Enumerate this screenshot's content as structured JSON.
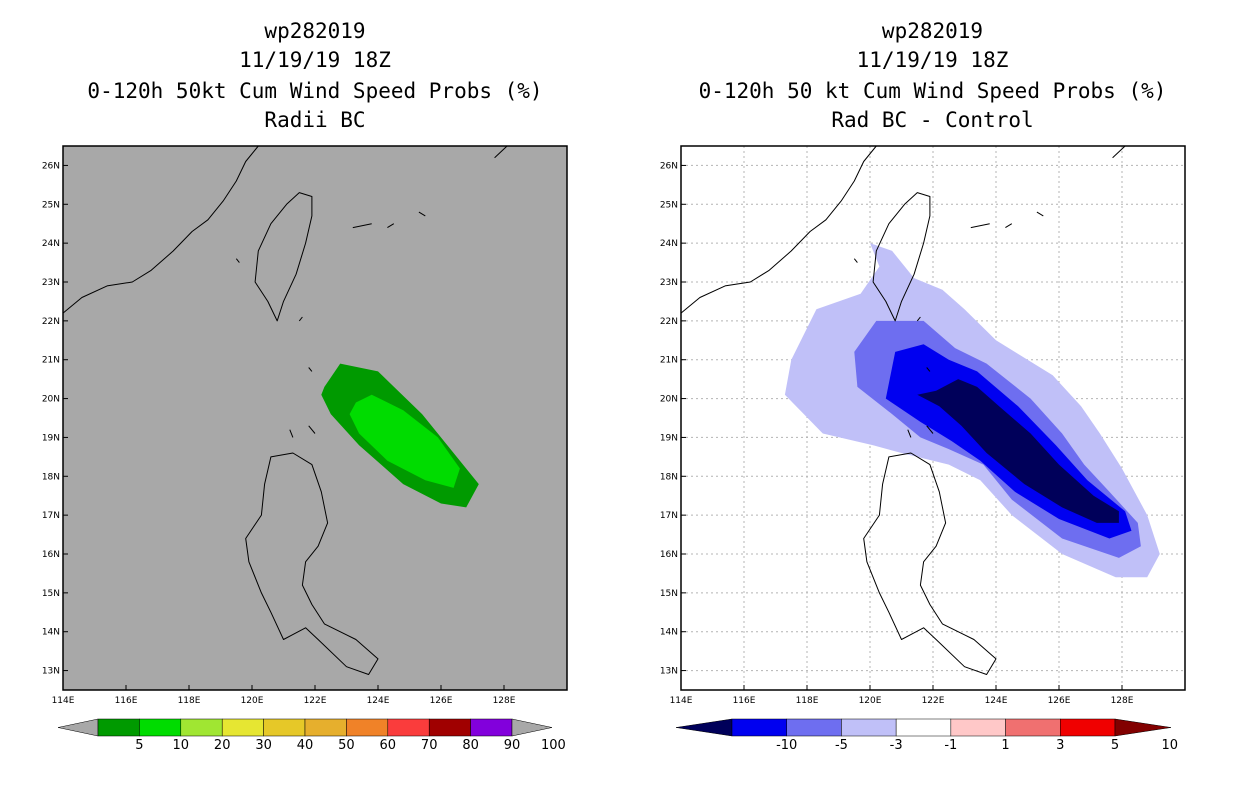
{
  "chart_data": [
    {
      "type": "heatmap",
      "title_lines": [
        "wp282019",
        "11/19/19 18Z",
        "0-120h 50kt Cum Wind Speed Probs (%)",
        "Radii BC"
      ],
      "x_ticks": [
        "114E",
        "116E",
        "118E",
        "120E",
        "122E",
        "124E",
        "126E",
        "128E"
      ],
      "y_ticks": [
        "13N",
        "14N",
        "15N",
        "16N",
        "17N",
        "18N",
        "19N",
        "20N",
        "21N",
        "22N",
        "23N",
        "24N",
        "25N",
        "26N"
      ],
      "lon_range": [
        114,
        130
      ],
      "lat_range": [
        12.5,
        26.5
      ],
      "background": "#a8a8a8",
      "grid": false,
      "colorbar": {
        "labels": [
          "5",
          "10",
          "20",
          "30",
          "40",
          "50",
          "60",
          "70",
          "80",
          "90",
          "100"
        ],
        "colors": [
          "#a8a8a8",
          "#009a00",
          "#00dc00",
          "#a0e632",
          "#e6e632",
          "#e6c828",
          "#e6af2d",
          "#f08228",
          "#fa3c3c",
          "#a00000",
          "#8200dc",
          "#a8a8a8"
        ]
      },
      "contours": [
        {
          "level": "5-10",
          "color": "#009a00",
          "points": [
            [
              122.3,
              20.3
            ],
            [
              122.8,
              20.9
            ],
            [
              124,
              20.7
            ],
            [
              125.4,
              19.6
            ],
            [
              126.4,
              18.6
            ],
            [
              127.2,
              17.8
            ],
            [
              126.8,
              17.2
            ],
            [
              126,
              17.3
            ],
            [
              124.8,
              17.8
            ],
            [
              123.4,
              18.8
            ],
            [
              122.5,
              19.6
            ],
            [
              122.2,
              20.1
            ]
          ]
        },
        {
          "level": "10-20",
          "color": "#00dc00",
          "points": [
            [
              123.3,
              19.9
            ],
            [
              123.8,
              20.1
            ],
            [
              124.8,
              19.7
            ],
            [
              125.9,
              19
            ],
            [
              126.6,
              18.2
            ],
            [
              126.4,
              17.7
            ],
            [
              125.5,
              17.9
            ],
            [
              124.3,
              18.4
            ],
            [
              123.4,
              19.1
            ],
            [
              123.1,
              19.6
            ]
          ]
        }
      ]
    },
    {
      "type": "heatmap",
      "title_lines": [
        "wp282019",
        "11/19/19 18Z",
        "0-120h 50 kt Cum Wind Speed Probs (%)",
        "Rad BC - Control"
      ],
      "x_ticks": [
        "114E",
        "116E",
        "118E",
        "120E",
        "122E",
        "124E",
        "126E",
        "128E"
      ],
      "y_ticks": [
        "13N",
        "14N",
        "15N",
        "16N",
        "17N",
        "18N",
        "19N",
        "20N",
        "21N",
        "22N",
        "23N",
        "24N",
        "25N",
        "26N"
      ],
      "lon_range": [
        114,
        130
      ],
      "lat_range": [
        12.5,
        26.5
      ],
      "background": "#ffffff",
      "grid": true,
      "colorbar": {
        "labels": [
          "-10",
          "-5",
          "-3",
          "-1",
          "1",
          "3",
          "5",
          "10"
        ],
        "colors": [
          "#00005a",
          "#0000f0",
          "#6e6ef0",
          "#c0c0f8",
          "#ffffff",
          "#ffc8c8",
          "#f07070",
          "#f00000",
          "#820000"
        ]
      },
      "contours": [
        {
          "level": "-3 to -1",
          "color": "#c0c0f8",
          "points": [
            [
              117.3,
              20.1
            ],
            [
              117.5,
              21
            ],
            [
              118.3,
              22.3
            ],
            [
              119.7,
              22.7
            ],
            [
              120.3,
              23.4
            ],
            [
              120,
              24
            ],
            [
              120.7,
              23.8
            ],
            [
              121.4,
              23.1
            ],
            [
              122.3,
              22.8
            ],
            [
              123,
              22.3
            ],
            [
              124,
              21.5
            ],
            [
              125.8,
              20.6
            ],
            [
              126.7,
              19.8
            ],
            [
              127.3,
              19.1
            ],
            [
              128,
              18.2
            ],
            [
              128.8,
              17
            ],
            [
              129.2,
              16
            ],
            [
              128.8,
              15.4
            ],
            [
              127.8,
              15.4
            ],
            [
              126.1,
              16
            ],
            [
              124.5,
              17
            ],
            [
              123.5,
              17.9
            ],
            [
              122.5,
              18.3
            ],
            [
              121,
              18.6
            ],
            [
              120.1,
              18.8
            ],
            [
              118.5,
              19.1
            ]
          ]
        },
        {
          "level": "-5 to -3",
          "color": "#6e6ef0",
          "points": [
            [
              119.5,
              21.2
            ],
            [
              120.2,
              22
            ],
            [
              121.7,
              22
            ],
            [
              122.7,
              21.3
            ],
            [
              123.7,
              20.9
            ],
            [
              125.1,
              20
            ],
            [
              126.1,
              19.1
            ],
            [
              126.8,
              18.3
            ],
            [
              127.6,
              17.6
            ],
            [
              128.5,
              16.8
            ],
            [
              128.6,
              16.2
            ],
            [
              127.9,
              15.9
            ],
            [
              126.1,
              16.4
            ],
            [
              124.5,
              17.4
            ],
            [
              123.6,
              18.3
            ],
            [
              122.5,
              18.7
            ],
            [
              121.6,
              19
            ],
            [
              120.7,
              19.6
            ],
            [
              119.6,
              20.3
            ]
          ]
        },
        {
          "level": "-10 to -5",
          "color": "#0000f0",
          "points": [
            [
              120.5,
              20
            ],
            [
              120.8,
              21.2
            ],
            [
              121.7,
              21.4
            ],
            [
              122.5,
              21
            ],
            [
              123.4,
              20.7
            ],
            [
              124.7,
              19.8
            ],
            [
              125.9,
              18.8
            ],
            [
              126.9,
              17.9
            ],
            [
              128.1,
              17.1
            ],
            [
              128.3,
              16.6
            ],
            [
              127.6,
              16.4
            ],
            [
              126,
              16.9
            ],
            [
              124.6,
              17.6
            ],
            [
              123.5,
              18.4
            ],
            [
              122.6,
              18.9
            ],
            [
              121.6,
              19.4
            ]
          ]
        },
        {
          "level": "< -10",
          "color": "#00005a",
          "points": [
            [
              121.5,
              20.1
            ],
            [
              122.1,
              20.2
            ],
            [
              122.8,
              20.5
            ],
            [
              123.4,
              20.3
            ],
            [
              124.1,
              19.8
            ],
            [
              125.1,
              19.1
            ],
            [
              126,
              18.3
            ],
            [
              127.1,
              17.5
            ],
            [
              127.9,
              17.1
            ],
            [
              127.9,
              16.8
            ],
            [
              127.2,
              16.8
            ],
            [
              126.1,
              17.2
            ],
            [
              124.9,
              17.8
            ],
            [
              123.7,
              18.6
            ],
            [
              122.9,
              19.3
            ],
            [
              122.2,
              19.8
            ]
          ]
        }
      ]
    }
  ]
}
